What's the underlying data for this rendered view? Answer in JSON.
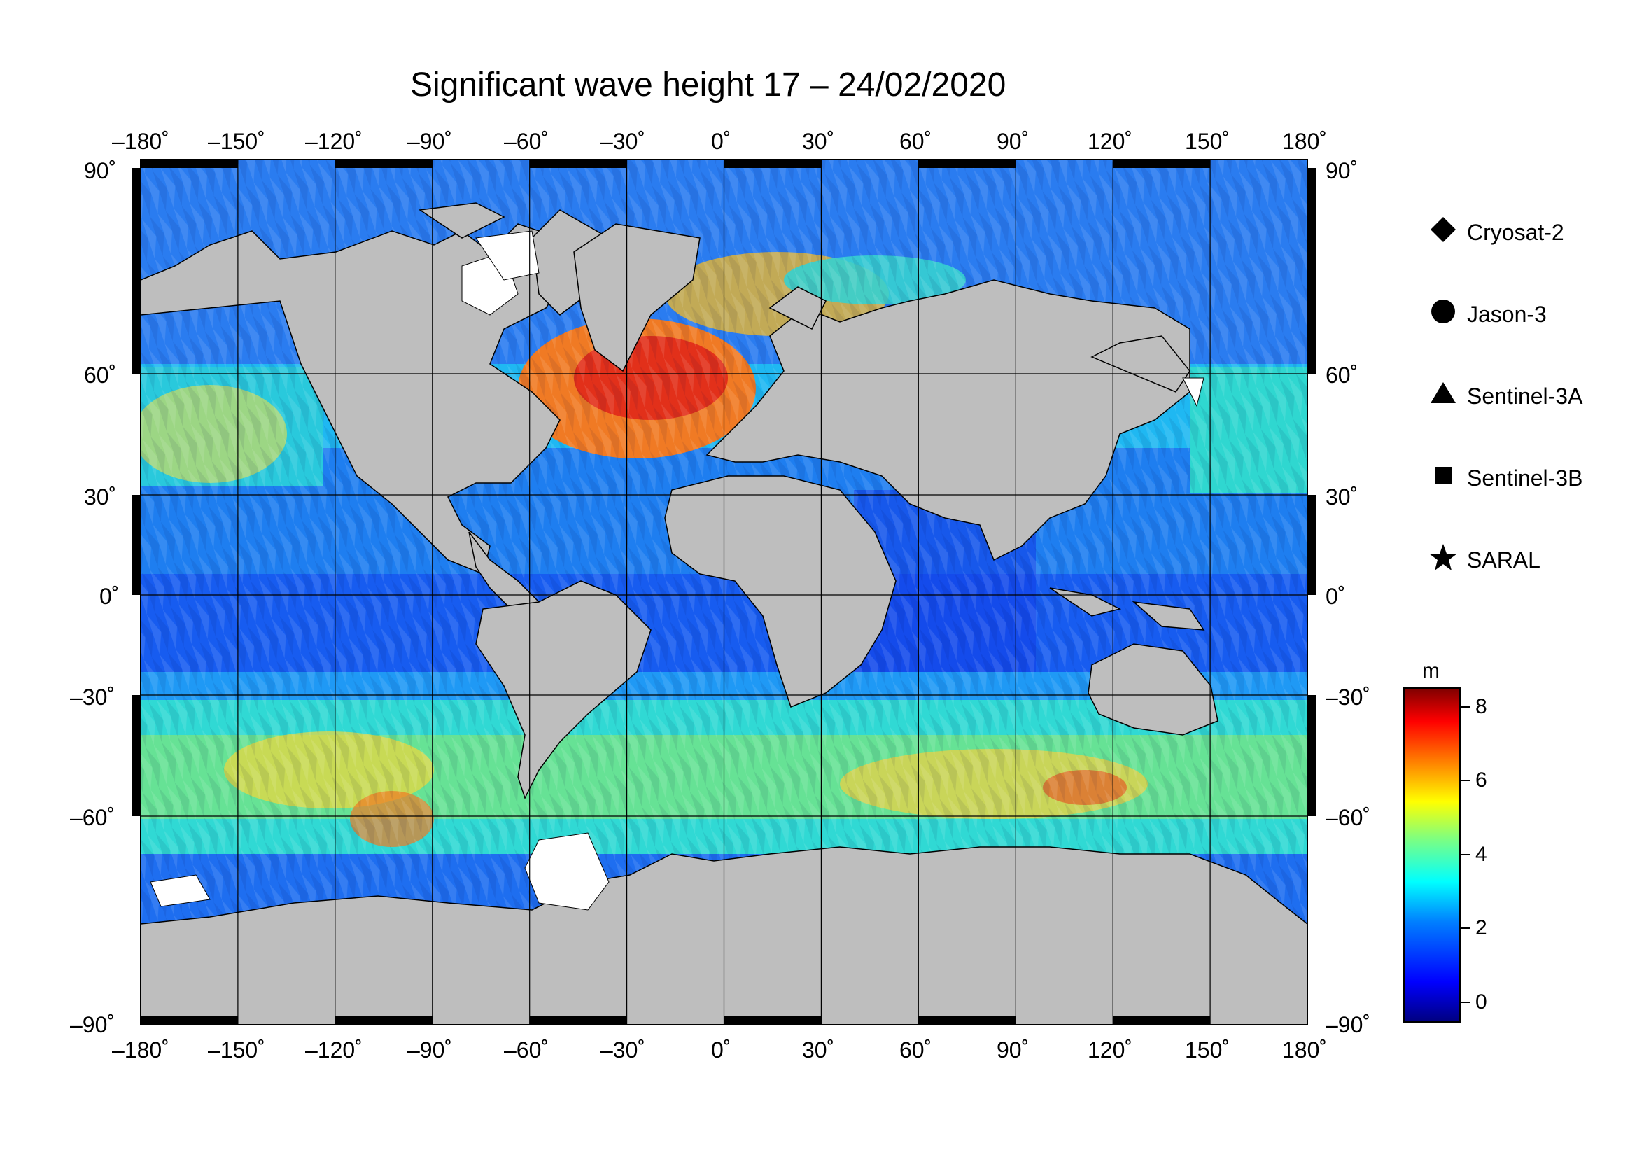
{
  "title": "Significant wave height 17 – 24/02/2020",
  "map": {
    "lon_ticks": [
      "–180˚",
      "–150˚",
      "–120˚",
      "–90˚",
      "–60˚",
      "–30˚",
      "0˚",
      "30˚",
      "60˚",
      "90˚",
      "120˚",
      "150˚",
      "180˚"
    ],
    "lat_ticks_left": [
      "90˚",
      "60˚",
      "30˚",
      "0˚",
      "–30˚",
      "–60˚",
      "–90˚"
    ],
    "lat_ticks_right": [
      "90˚",
      "60˚",
      "30˚",
      "0˚",
      "–30˚",
      "–60˚",
      "–90˚"
    ],
    "projection": "equirectangular",
    "extent_lon": [
      -180,
      180
    ],
    "extent_lat": [
      -90,
      90
    ],
    "land_color": "#bebebe",
    "ice_color": "#ffffff",
    "graticule_step_deg": 30,
    "swh_field_desc": "wave height shown by colour along satellite tracks; highest in North Atlantic and Southern Ocean"
  },
  "legend": {
    "items": [
      {
        "label": "Cryosat-2",
        "symbol": "diamond-icon"
      },
      {
        "label": "Jason-3",
        "symbol": "circle-icon"
      },
      {
        "label": "Sentinel-3A",
        "symbol": "triangle-icon"
      },
      {
        "label": "Sentinel-3B",
        "symbol": "square-icon"
      },
      {
        "label": "SARAL",
        "symbol": "star-icon"
      }
    ]
  },
  "colorbar": {
    "unit": "m",
    "ticks": [
      "8",
      "6",
      "4",
      "2",
      "0"
    ],
    "range": [
      -0.7,
      8.6
    ],
    "colors": [
      "#00007f",
      "#0000ff",
      "#007fff",
      "#00ffff",
      "#7fff7f",
      "#ffff00",
      "#ff7f00",
      "#ff0000",
      "#7f0000"
    ]
  }
}
